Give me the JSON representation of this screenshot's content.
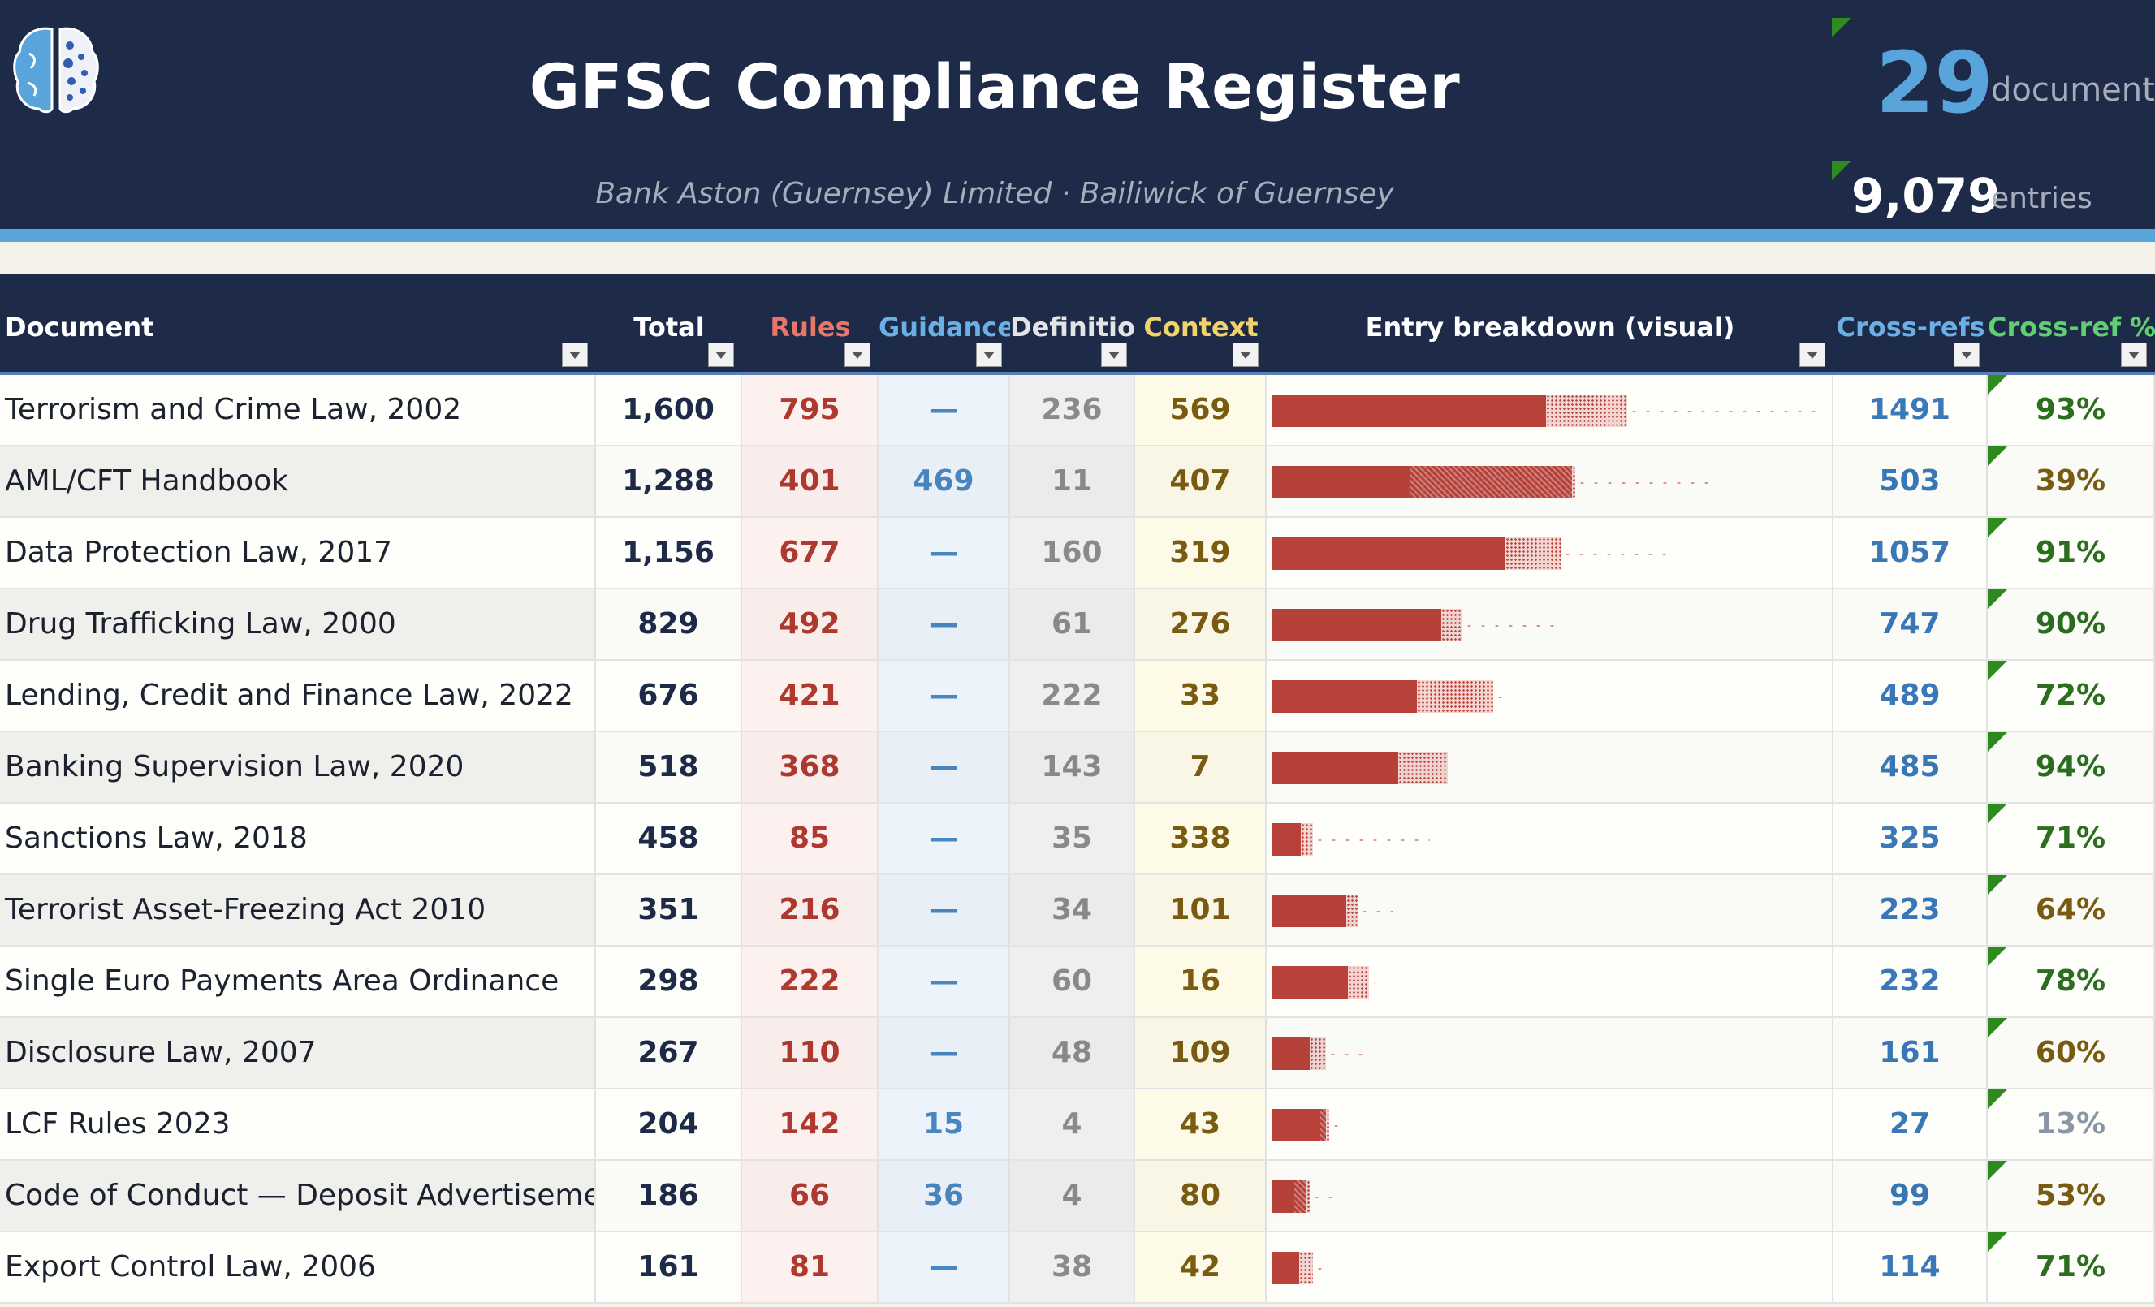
{
  "header": {
    "title": "GFSC Compliance Register",
    "subtitle": "Bank Aston (Guernsey) Limited  ·  Bailiwick of Guernsey",
    "documents_count": "29",
    "documents_label": "documents",
    "entries_count": "9,079",
    "entries_label": "entries",
    "logo_icon": "brain-icon"
  },
  "columns": [
    {
      "key": "document",
      "label": "Document",
      "color": "#ffffff"
    },
    {
      "key": "total",
      "label": "Total",
      "color": "#ffffff"
    },
    {
      "key": "rules",
      "label": "Rules",
      "color": "#e8776a"
    },
    {
      "key": "guidance",
      "label": "Guidance",
      "color": "#6ab0e6"
    },
    {
      "key": "definitions",
      "label": "Definitions",
      "color": "#e4e4e4"
    },
    {
      "key": "context",
      "label": "Context",
      "color": "#f2d26a"
    },
    {
      "key": "visual",
      "label": "Entry breakdown (visual)",
      "color": "#ffffff"
    },
    {
      "key": "crossrefs",
      "label": "Cross-refs",
      "color": "#6ab0e6"
    },
    {
      "key": "crossref_pct",
      "label": "Cross-ref %",
      "color": "#5fd070"
    }
  ],
  "rows": [
    {
      "document": "Terrorism and Crime Law, 2002",
      "total": "1,600",
      "rules": "795",
      "guidance": "—",
      "definitions": "236",
      "context": "569",
      "crossrefs": "1491",
      "crossref_pct": "93%",
      "t": 1600,
      "r": 795,
      "g": 0,
      "d": 236,
      "c": 569
    },
    {
      "document": "AML/CFT Handbook",
      "total": "1,288",
      "rules": "401",
      "guidance": "469",
      "definitions": "11",
      "context": "407",
      "crossrefs": "503",
      "crossref_pct": "39%",
      "t": 1288,
      "r": 401,
      "g": 469,
      "d": 11,
      "c": 407
    },
    {
      "document": "Data Protection Law, 2017",
      "total": "1,156",
      "rules": "677",
      "guidance": "—",
      "definitions": "160",
      "context": "319",
      "crossrefs": "1057",
      "crossref_pct": "91%",
      "t": 1156,
      "r": 677,
      "g": 0,
      "d": 160,
      "c": 319
    },
    {
      "document": "Drug Trafficking Law, 2000",
      "total": "829",
      "rules": "492",
      "guidance": "—",
      "definitions": "61",
      "context": "276",
      "crossrefs": "747",
      "crossref_pct": "90%",
      "t": 829,
      "r": 492,
      "g": 0,
      "d": 61,
      "c": 276
    },
    {
      "document": "Lending, Credit and Finance Law, 2022",
      "total": "676",
      "rules": "421",
      "guidance": "—",
      "definitions": "222",
      "context": "33",
      "crossrefs": "489",
      "crossref_pct": "72%",
      "t": 676,
      "r": 421,
      "g": 0,
      "d": 222,
      "c": 33
    },
    {
      "document": "Banking Supervision Law, 2020",
      "total": "518",
      "rules": "368",
      "guidance": "—",
      "definitions": "143",
      "context": "7",
      "crossrefs": "485",
      "crossref_pct": "94%",
      "t": 518,
      "r": 368,
      "g": 0,
      "d": 143,
      "c": 7
    },
    {
      "document": "Sanctions Law, 2018",
      "total": "458",
      "rules": "85",
      "guidance": "—",
      "definitions": "35",
      "context": "338",
      "crossrefs": "325",
      "crossref_pct": "71%",
      "t": 458,
      "r": 85,
      "g": 0,
      "d": 35,
      "c": 338
    },
    {
      "document": "Terrorist Asset-Freezing Act 2010",
      "total": "351",
      "rules": "216",
      "guidance": "—",
      "definitions": "34",
      "context": "101",
      "crossrefs": "223",
      "crossref_pct": "64%",
      "t": 351,
      "r": 216,
      "g": 0,
      "d": 34,
      "c": 101
    },
    {
      "document": "Single Euro Payments Area Ordinance",
      "total": "298",
      "rules": "222",
      "guidance": "—",
      "definitions": "60",
      "context": "16",
      "crossrefs": "232",
      "crossref_pct": "78%",
      "t": 298,
      "r": 222,
      "g": 0,
      "d": 60,
      "c": 16
    },
    {
      "document": "Disclosure Law, 2007",
      "total": "267",
      "rules": "110",
      "guidance": "—",
      "definitions": "48",
      "context": "109",
      "crossrefs": "161",
      "crossref_pct": "60%",
      "t": 267,
      "r": 110,
      "g": 0,
      "d": 48,
      "c": 109
    },
    {
      "document": "LCF Rules 2023",
      "total": "204",
      "rules": "142",
      "guidance": "15",
      "definitions": "4",
      "context": "43",
      "crossrefs": "27",
      "crossref_pct": "13%",
      "t": 204,
      "r": 142,
      "g": 15,
      "d": 4,
      "c": 43
    },
    {
      "document": "Code of Conduct — Deposit Advertisements",
      "total": "186",
      "rules": "66",
      "guidance": "36",
      "definitions": "4",
      "context": "80",
      "crossrefs": "99",
      "crossref_pct": "53%",
      "t": 186,
      "r": 66,
      "g": 36,
      "d": 4,
      "c": 80
    },
    {
      "document": "Export Control Law, 2006",
      "total": "161",
      "rules": "81",
      "guidance": "—",
      "definitions": "38",
      "context": "42",
      "crossrefs": "114",
      "crossref_pct": "71%",
      "t": 161,
      "r": 81,
      "g": 0,
      "d": 38,
      "c": 42
    }
  ],
  "colors": {
    "banner": "#1d2a48",
    "accent": "#5aa4dc",
    "rules": "#b8423a",
    "comment_flag": "#2e8b1e"
  }
}
